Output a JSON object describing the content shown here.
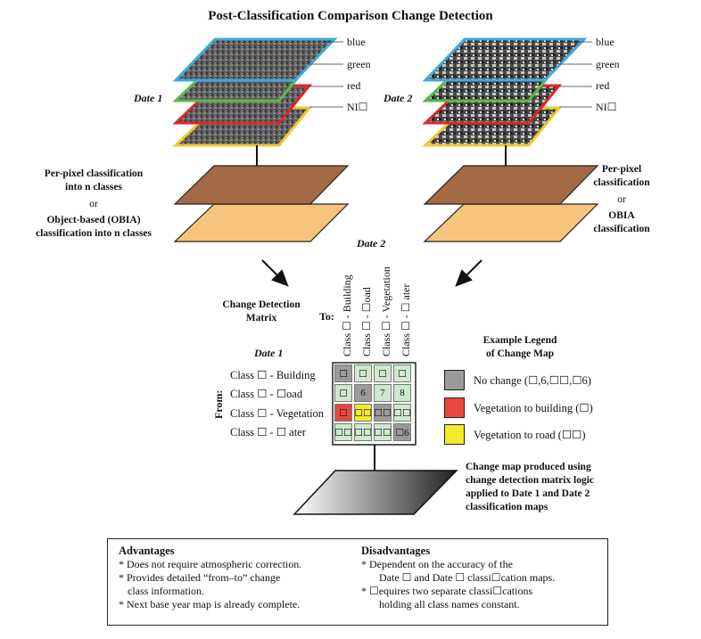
{
  "title": "Post-Classification Comparison Change Detection",
  "date1": {
    "label": "Date 1",
    "bands": [
      "blue",
      "green",
      "red",
      "NI☐"
    ],
    "classification": {
      "line1": "Per-pixel classification",
      "line2": "into n classes",
      "or": "or",
      "line3": "Object-based (OBIA)",
      "line4": "classification into n classes"
    }
  },
  "date2": {
    "label": "Date 2",
    "bands": [
      "blue",
      "green",
      "red",
      "NI☐"
    ],
    "classification": {
      "line1": "Per-pixel",
      "line2": "classification",
      "or": "or",
      "line3": "OBIA",
      "line4": "classification"
    }
  },
  "matrix": {
    "title_line1": "Change Detection",
    "title_line2": "Matrix",
    "date2_label": "Date 2",
    "date1_label": "Date 1",
    "to_label": "To:",
    "from_label": "From:",
    "columns": [
      "Class ☐ - Building",
      "Class ☐ - ☐oad",
      "Class ☐ - Vegetation",
      "Class ☐ - ☐ ater"
    ],
    "rows": [
      "Class ☐ - Building",
      "Class ☐ - ☐oad",
      "Class ☐ - Vegetation",
      "Class ☐ - ☐ ater"
    ],
    "cells": [
      [
        {
          "v": "☐",
          "c": "#9a9a9a"
        },
        {
          "v": "☐",
          "c": "#cfe9cf"
        },
        {
          "v": "☐",
          "c": "#cfe9cf"
        },
        {
          "v": "☐",
          "c": "#cfe9cf"
        }
      ],
      [
        {
          "v": "☐",
          "c": "#cfe9cf"
        },
        {
          "v": "6",
          "c": "#9a9a9a"
        },
        {
          "v": "7",
          "c": "#cfe9cf"
        },
        {
          "v": "8",
          "c": "#cfe9cf"
        }
      ],
      [
        {
          "v": "☐",
          "c": "#e8483b"
        },
        {
          "v": "☐☐",
          "c": "#f3ea2a"
        },
        {
          "v": "☐☐",
          "c": "#9a9a9a"
        },
        {
          "v": "☐☐",
          "c": "#cfe9cf"
        }
      ],
      [
        {
          "v": "☐☐",
          "c": "#cfe9cf"
        },
        {
          "v": "☐☐",
          "c": "#cfe9cf"
        },
        {
          "v": "☐☐",
          "c": "#cfe9cf"
        },
        {
          "v": "☐6",
          "c": "#9a9a9a"
        }
      ]
    ]
  },
  "legend": {
    "title_line1": "Example Legend",
    "title_line2": "of Change Map",
    "items": [
      {
        "label": "No change (☐,6,☐☐,☐6)",
        "color": "#9a9a9a"
      },
      {
        "label": "Vegetation to building (☐)",
        "color": "#e8483b"
      },
      {
        "label": "Vegetation to road (☐☐)",
        "color": "#f3ea2a"
      }
    ]
  },
  "change_map": {
    "line1": "Change map produced using",
    "line2": "change detection matrix logic",
    "line3": "applied to Date 1 and Date 2",
    "line4": "classification maps"
  },
  "advantages": {
    "heading": "Advantages",
    "l1": "* Does not require atmospheric correction.",
    "l2": "* Provides detailed “from–to” change",
    "l3": "class information.",
    "l4": "* Next base year map is already complete."
  },
  "disadvantages": {
    "heading": "Disadvantages",
    "l1": "* Dependent on the accuracy of the",
    "l2": "Date ☐ and Date ☐ classi☐cation maps.",
    "l3": "* ☐equires two separate classi☐cations",
    "l4": "holding all class names constant."
  },
  "colors": {
    "blue_band": "#3fa9e0",
    "green_band": "#5bb947",
    "red_band": "#e0262b",
    "nir_band": "#f2c72a",
    "class_dark": "#a26a45",
    "class_light": "#f7c47e"
  }
}
